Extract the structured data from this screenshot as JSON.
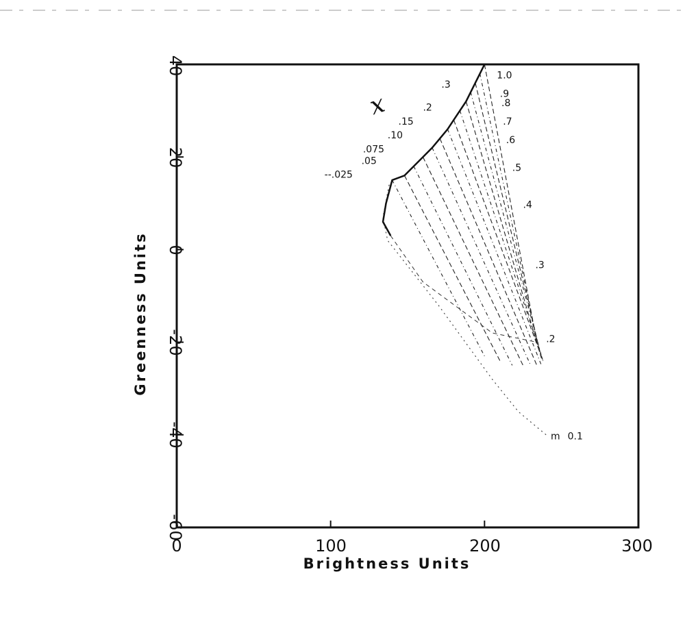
{
  "chart_data": {
    "type": "line",
    "title": "",
    "xlabel": "Brightness  Units",
    "ylabel": "Greenness  Units",
    "xlim": [
      0,
      300
    ],
    "ylim": [
      -60,
      40
    ],
    "x_ticks": [
      "0",
      "100",
      "200",
      "300"
    ],
    "y_ticks": [
      "-60",
      "-40",
      "-20",
      "0",
      "20",
      "40"
    ],
    "grid": false,
    "legend": "none",
    "annotation_symbol": "x",
    "annotation_prefix": "m",
    "series": [
      {
        "label": "1.0",
        "x": [
          200,
          234
        ],
        "y": [
          40,
          -20
        ]
      },
      {
        "label": ".9",
        "x": [
          197,
          235
        ],
        "y": [
          38,
          -21
        ]
      },
      {
        "label": ".8",
        "x": [
          194,
          236
        ],
        "y": [
          36,
          -22
        ]
      },
      {
        "label": ".7",
        "x": [
          191,
          237
        ],
        "y": [
          34,
          -23
        ]
      },
      {
        "label": ".6",
        "x": [
          188,
          237
        ],
        "y": [
          32,
          -23.5
        ]
      },
      {
        "label": ".5",
        "x": [
          184,
          238
        ],
        "y": [
          30,
          -24
        ]
      },
      {
        "label": ".4",
        "x": [
          180,
          238
        ],
        "y": [
          28,
          -24
        ]
      },
      {
        "label": ".3",
        "x": [
          176,
          237
        ],
        "y": [
          26,
          -25
        ]
      },
      {
        "label": ".2",
        "x": [
          171,
          234
        ],
        "y": [
          24,
          -25
        ]
      },
      {
        "label": ".15",
        "x": [
          166,
          230
        ],
        "y": [
          22,
          -25
        ]
      },
      {
        "label": ".10",
        "x": [
          160,
          225
        ],
        "y": [
          20,
          -25
        ]
      },
      {
        "label": ".075",
        "x": [
          154,
          218
        ],
        "y": [
          18,
          -25
        ]
      },
      {
        "label": ".05",
        "x": [
          148,
          210
        ],
        "y": [
          16,
          -24
        ]
      },
      {
        "label": ".025",
        "x": [
          140,
          200
        ],
        "y": [
          15,
          -23
        ]
      }
    ],
    "envelopes": [
      {
        "label": "0.1",
        "x": [
          138,
          134,
          137,
          170,
          205,
          222,
          240
        ],
        "y": [
          14,
          7,
          2,
          -12,
          -28,
          -35,
          -40
        ]
      }
    ],
    "label_positions": [
      {
        "text": "1.0",
        "x": 208,
        "y": 37
      },
      {
        "text": ".9",
        "x": 210,
        "y": 33
      },
      {
        "text": ".8",
        "x": 211,
        "y": 31
      },
      {
        "text": ".7",
        "x": 212,
        "y": 27
      },
      {
        "text": ".6",
        "x": 214,
        "y": 23
      },
      {
        "text": ".5",
        "x": 218,
        "y": 17
      },
      {
        "text": ".4",
        "x": 225,
        "y": 9
      },
      {
        "text": ".3",
        "x": 233,
        "y": -4
      },
      {
        "text": ".2",
        "x": 240,
        "y": -20
      },
      {
        "text": ".3",
        "x": 172,
        "y": 35
      },
      {
        "text": ".2",
        "x": 160,
        "y": 30
      },
      {
        "text": ".15",
        "x": 144,
        "y": 27
      },
      {
        "text": ".10",
        "x": 137,
        "y": 24
      },
      {
        "text": ".075",
        "x": 121,
        "y": 21
      },
      {
        "text": ".05",
        "x": 120,
        "y": 18.5
      },
      {
        "text": "--.025",
        "x": 96,
        "y": 15.5
      },
      {
        "text": "0.1",
        "x": 254,
        "y": -41
      },
      {
        "text": "m",
        "x": 243,
        "y": -41
      }
    ]
  }
}
